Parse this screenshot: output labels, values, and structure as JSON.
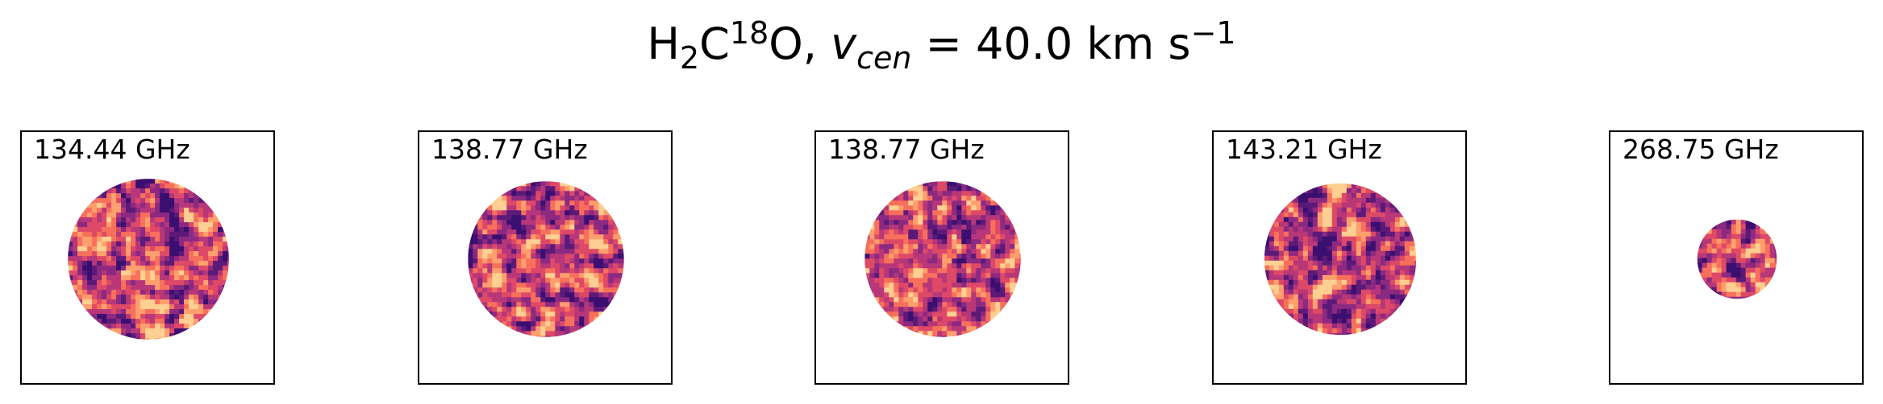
{
  "figure": {
    "title": {
      "molecule_prefix": "H",
      "sub1": "2",
      "mid": "C",
      "sup1": "18",
      "suffix": "O, ",
      "var_main": "v",
      "var_sub": "cen",
      "equals_value": " =  40.0 km s",
      "sup2": "−1"
    },
    "panels": [
      {
        "label": "134.44 GHz",
        "disk_radius": 0.316
      },
      {
        "label": "138.77 GHz",
        "disk_radius": 0.306
      },
      {
        "label": "138.77 GHz",
        "disk_radius": 0.306
      },
      {
        "label": "143.21 GHz",
        "disk_radius": 0.298
      },
      {
        "label": "268.75 GHz",
        "disk_radius": 0.156
      }
    ],
    "colormap": [
      "#3b0f70",
      "#5c1a78",
      "#8c2981",
      "#b73779",
      "#de4968",
      "#f7705c",
      "#fe9f6d",
      "#fecf92"
    ]
  }
}
